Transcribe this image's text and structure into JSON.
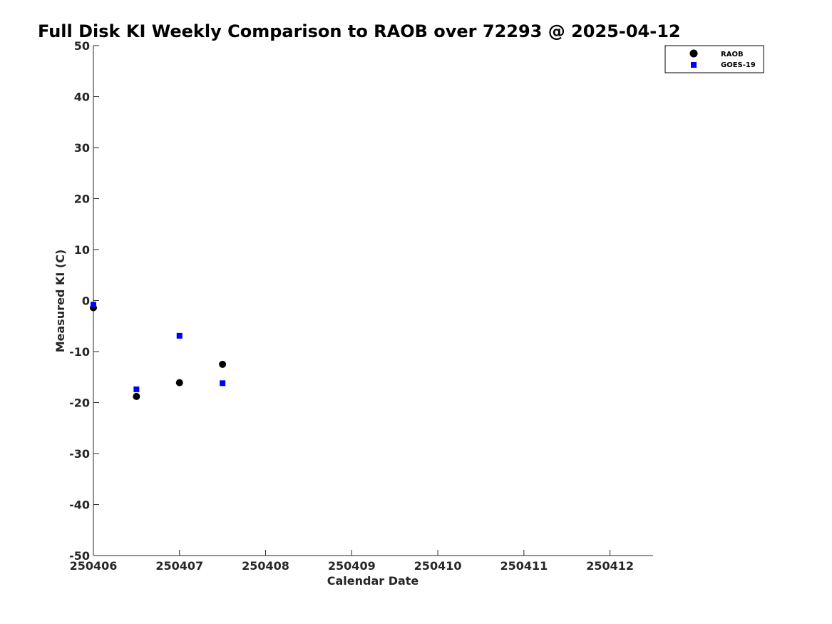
{
  "chart_data": {
    "type": "scatter",
    "title": "Full Disk KI Weekly Comparison to RAOB over 72293 @ 2025-04-12",
    "xlabel": "Calendar Date",
    "ylabel": "Measured KI (C)",
    "xlim": [
      0,
      6.5
    ],
    "ylim": [
      -50,
      50
    ],
    "x_ticks": [
      0,
      1,
      2,
      3,
      4,
      5,
      6
    ],
    "x_tick_labels": [
      "250406",
      "250407",
      "250408",
      "250409",
      "250410",
      "250411",
      "250412"
    ],
    "y_ticks": [
      50,
      40,
      30,
      20,
      10,
      0,
      -10,
      -20,
      -30,
      -40,
      -50
    ],
    "y_tick_labels": [
      "50",
      "40",
      "30",
      "20",
      "10",
      "0",
      "-10",
      "-20",
      "-30",
      "-40",
      "-50"
    ],
    "grid": false,
    "legend_position": "top-right",
    "series": [
      {
        "name": "RAOB",
        "marker": "circle",
        "color": "#000000",
        "x": [
          0,
          0.5,
          1,
          1.5
        ],
        "y": [
          -1.4,
          -18.8,
          -16.1,
          -12.5
        ]
      },
      {
        "name": "GOES-19",
        "marker": "square",
        "color": "#0000ff",
        "x": [
          0,
          0.5,
          1,
          1.5
        ],
        "y": [
          -0.8,
          -17.4,
          -6.9,
          -16.2
        ]
      }
    ]
  }
}
